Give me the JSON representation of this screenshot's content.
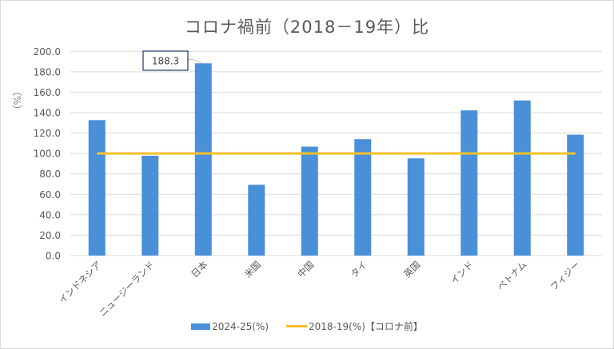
{
  "chart_data": {
    "type": "bar",
    "title": "コロナ禍前（2018－19年）比",
    "xlabel": "",
    "ylabel": "（%）",
    "ylim": [
      0,
      200
    ],
    "yticks": [
      "0.0",
      "20.0",
      "40.0",
      "60.0",
      "80.0",
      "100.0",
      "120.0",
      "140.0",
      "160.0",
      "180.0",
      "200.0"
    ],
    "grid": true,
    "legend_position": "bottom",
    "categories": [
      "インドネシア",
      "ニュージーランド",
      "日本",
      "米国",
      "中国",
      "タイ",
      "英国",
      "インド",
      "ベトナム",
      "フィジー"
    ],
    "series": [
      {
        "name": "2024-25(%)",
        "type": "bar",
        "color": "#4a90d9",
        "values": [
          132.7,
          97.8,
          188.3,
          69.3,
          106.7,
          114.0,
          95.2,
          142.2,
          151.9,
          118.4
        ]
      },
      {
        "name": "2018-19(%)【コロナ前】",
        "type": "line",
        "color": "#f5c02c",
        "values": [
          100,
          100,
          100,
          100,
          100,
          100,
          100,
          100,
          100,
          100
        ]
      }
    ],
    "annotations": [
      {
        "category": "日本",
        "text": "188.3"
      }
    ]
  }
}
